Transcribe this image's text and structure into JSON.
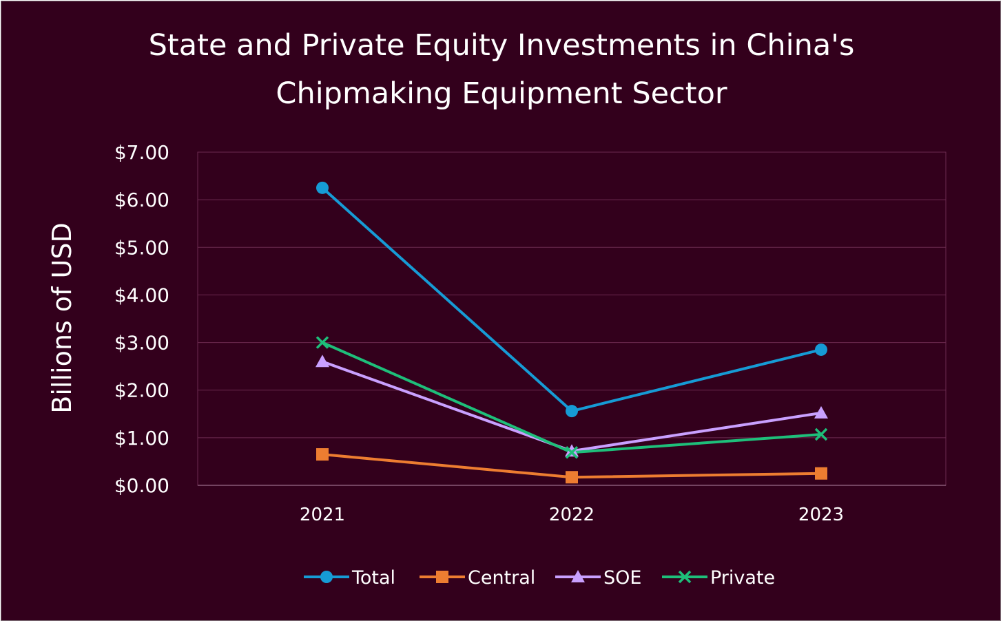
{
  "chart_data": {
    "type": "line",
    "title_lines": [
      "State and Private Equity Investments in China's",
      "Chipmaking Equipment Sector"
    ],
    "ylabel": "Billions of USD",
    "xlabel": "",
    "categories": [
      "2021",
      "2022",
      "2023"
    ],
    "ylim": [
      0,
      7
    ],
    "yticks": [
      0,
      1,
      2,
      3,
      4,
      5,
      6,
      7
    ],
    "ytick_labels": [
      "$0.00",
      "$1.00",
      "$2.00",
      "$3.00",
      "$4.00",
      "$5.00",
      "$6.00",
      "$7.00"
    ],
    "grid": true,
    "legend_position": "bottom",
    "series": [
      {
        "name": "Total",
        "values": [
          6.25,
          1.56,
          2.85
        ],
        "color": "#169bd5",
        "marker": "circle"
      },
      {
        "name": "Central",
        "values": [
          0.65,
          0.17,
          0.25
        ],
        "color": "#ed7d31",
        "marker": "square"
      },
      {
        "name": "SOE",
        "values": [
          2.6,
          0.72,
          1.52
        ],
        "color": "#c9a0ff",
        "marker": "triangle"
      },
      {
        "name": "Private",
        "values": [
          3.0,
          0.69,
          1.07
        ],
        "color": "#1ebf7a",
        "marker": "x"
      }
    ],
    "colors": {
      "background": "#33001c",
      "gridline": "#6b2a4f",
      "text": "#ffffff"
    }
  }
}
